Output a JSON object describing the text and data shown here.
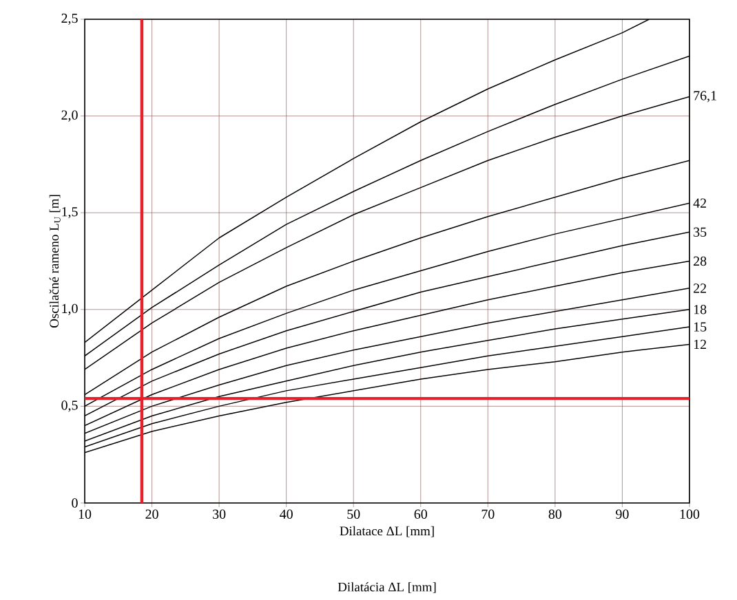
{
  "chart_data": {
    "type": "line",
    "xlabel": "Dilatace ΔL [mm]",
    "ylabel": "Oscilačné rameno L$_{U}$ [m]",
    "annotations": [
      "Dilatácia ΔL [mm]"
    ],
    "x": [
      10,
      20,
      30,
      40,
      50,
      60,
      70,
      80,
      90,
      100
    ],
    "series": [
      {
        "color": "#000000",
        "x": [
          10,
          20,
          30,
          40,
          50,
          60,
          70,
          80,
          90,
          94
        ],
        "values": [
          0.83,
          1.1,
          1.37,
          1.58,
          1.78,
          1.97,
          2.14,
          2.29,
          2.43,
          2.5
        ]
      },
      {
        "color": "#000000",
        "values": [
          0.76,
          1.01,
          1.23,
          1.44,
          1.61,
          1.77,
          1.92,
          2.06,
          2.19,
          2.31
        ]
      },
      {
        "name": "76,1",
        "color": "#000000",
        "values": [
          0.69,
          0.93,
          1.14,
          1.32,
          1.49,
          1.63,
          1.77,
          1.89,
          2.0,
          2.1
        ]
      },
      {
        "color": "#000000",
        "values": [
          0.56,
          0.78,
          0.96,
          1.12,
          1.25,
          1.37,
          1.48,
          1.58,
          1.68,
          1.77
        ]
      },
      {
        "name": "42",
        "color": "#000000",
        "values": [
          0.5,
          0.69,
          0.85,
          0.98,
          1.1,
          1.2,
          1.3,
          1.39,
          1.47,
          1.55
        ]
      },
      {
        "name": "35",
        "color": "#000000",
        "values": [
          0.45,
          0.63,
          0.77,
          0.89,
          0.99,
          1.09,
          1.17,
          1.25,
          1.33,
          1.4
        ]
      },
      {
        "name": "28",
        "color": "#000000",
        "values": [
          0.4,
          0.56,
          0.69,
          0.8,
          0.89,
          0.97,
          1.05,
          1.12,
          1.19,
          1.25
        ]
      },
      {
        "name": "22",
        "color": "#000000",
        "values": [
          0.36,
          0.5,
          0.61,
          0.71,
          0.79,
          0.86,
          0.93,
          0.99,
          1.05,
          1.11
        ]
      },
      {
        "name": "18",
        "color": "#000000",
        "values": [
          0.32,
          0.45,
          0.55,
          0.63,
          0.71,
          0.78,
          0.84,
          0.9,
          0.95,
          1.0
        ]
      },
      {
        "name": "15",
        "color": "#000000",
        "values": [
          0.29,
          0.41,
          0.5,
          0.58,
          0.64,
          0.7,
          0.76,
          0.81,
          0.86,
          0.91
        ]
      },
      {
        "name": "12",
        "color": "#000000",
        "values": [
          0.26,
          0.37,
          0.45,
          0.52,
          0.58,
          0.64,
          0.69,
          0.73,
          0.78,
          0.82
        ]
      }
    ],
    "xlim": [
      10,
      100
    ],
    "ylim": [
      0,
      2.5
    ],
    "xticks": [
      10,
      20,
      30,
      40,
      50,
      60,
      70,
      80,
      90,
      100
    ],
    "yticks": [
      0,
      {
        "value": 0.5,
        "label": "0,5"
      },
      {
        "value": 1.0,
        "label": "1,0"
      },
      {
        "value": 1.5,
        "label": "1,5"
      },
      {
        "value": 2.0,
        "label": "2,0"
      },
      {
        "value": 2.5,
        "label": "2,5"
      }
    ],
    "ref_lines": [
      {
        "axis": "x",
        "value": 18.5,
        "color": "#e8202a"
      },
      {
        "axis": "y",
        "value": 0.54,
        "color": "#e8202a"
      }
    ],
    "grid": true,
    "line_style": "solid"
  }
}
